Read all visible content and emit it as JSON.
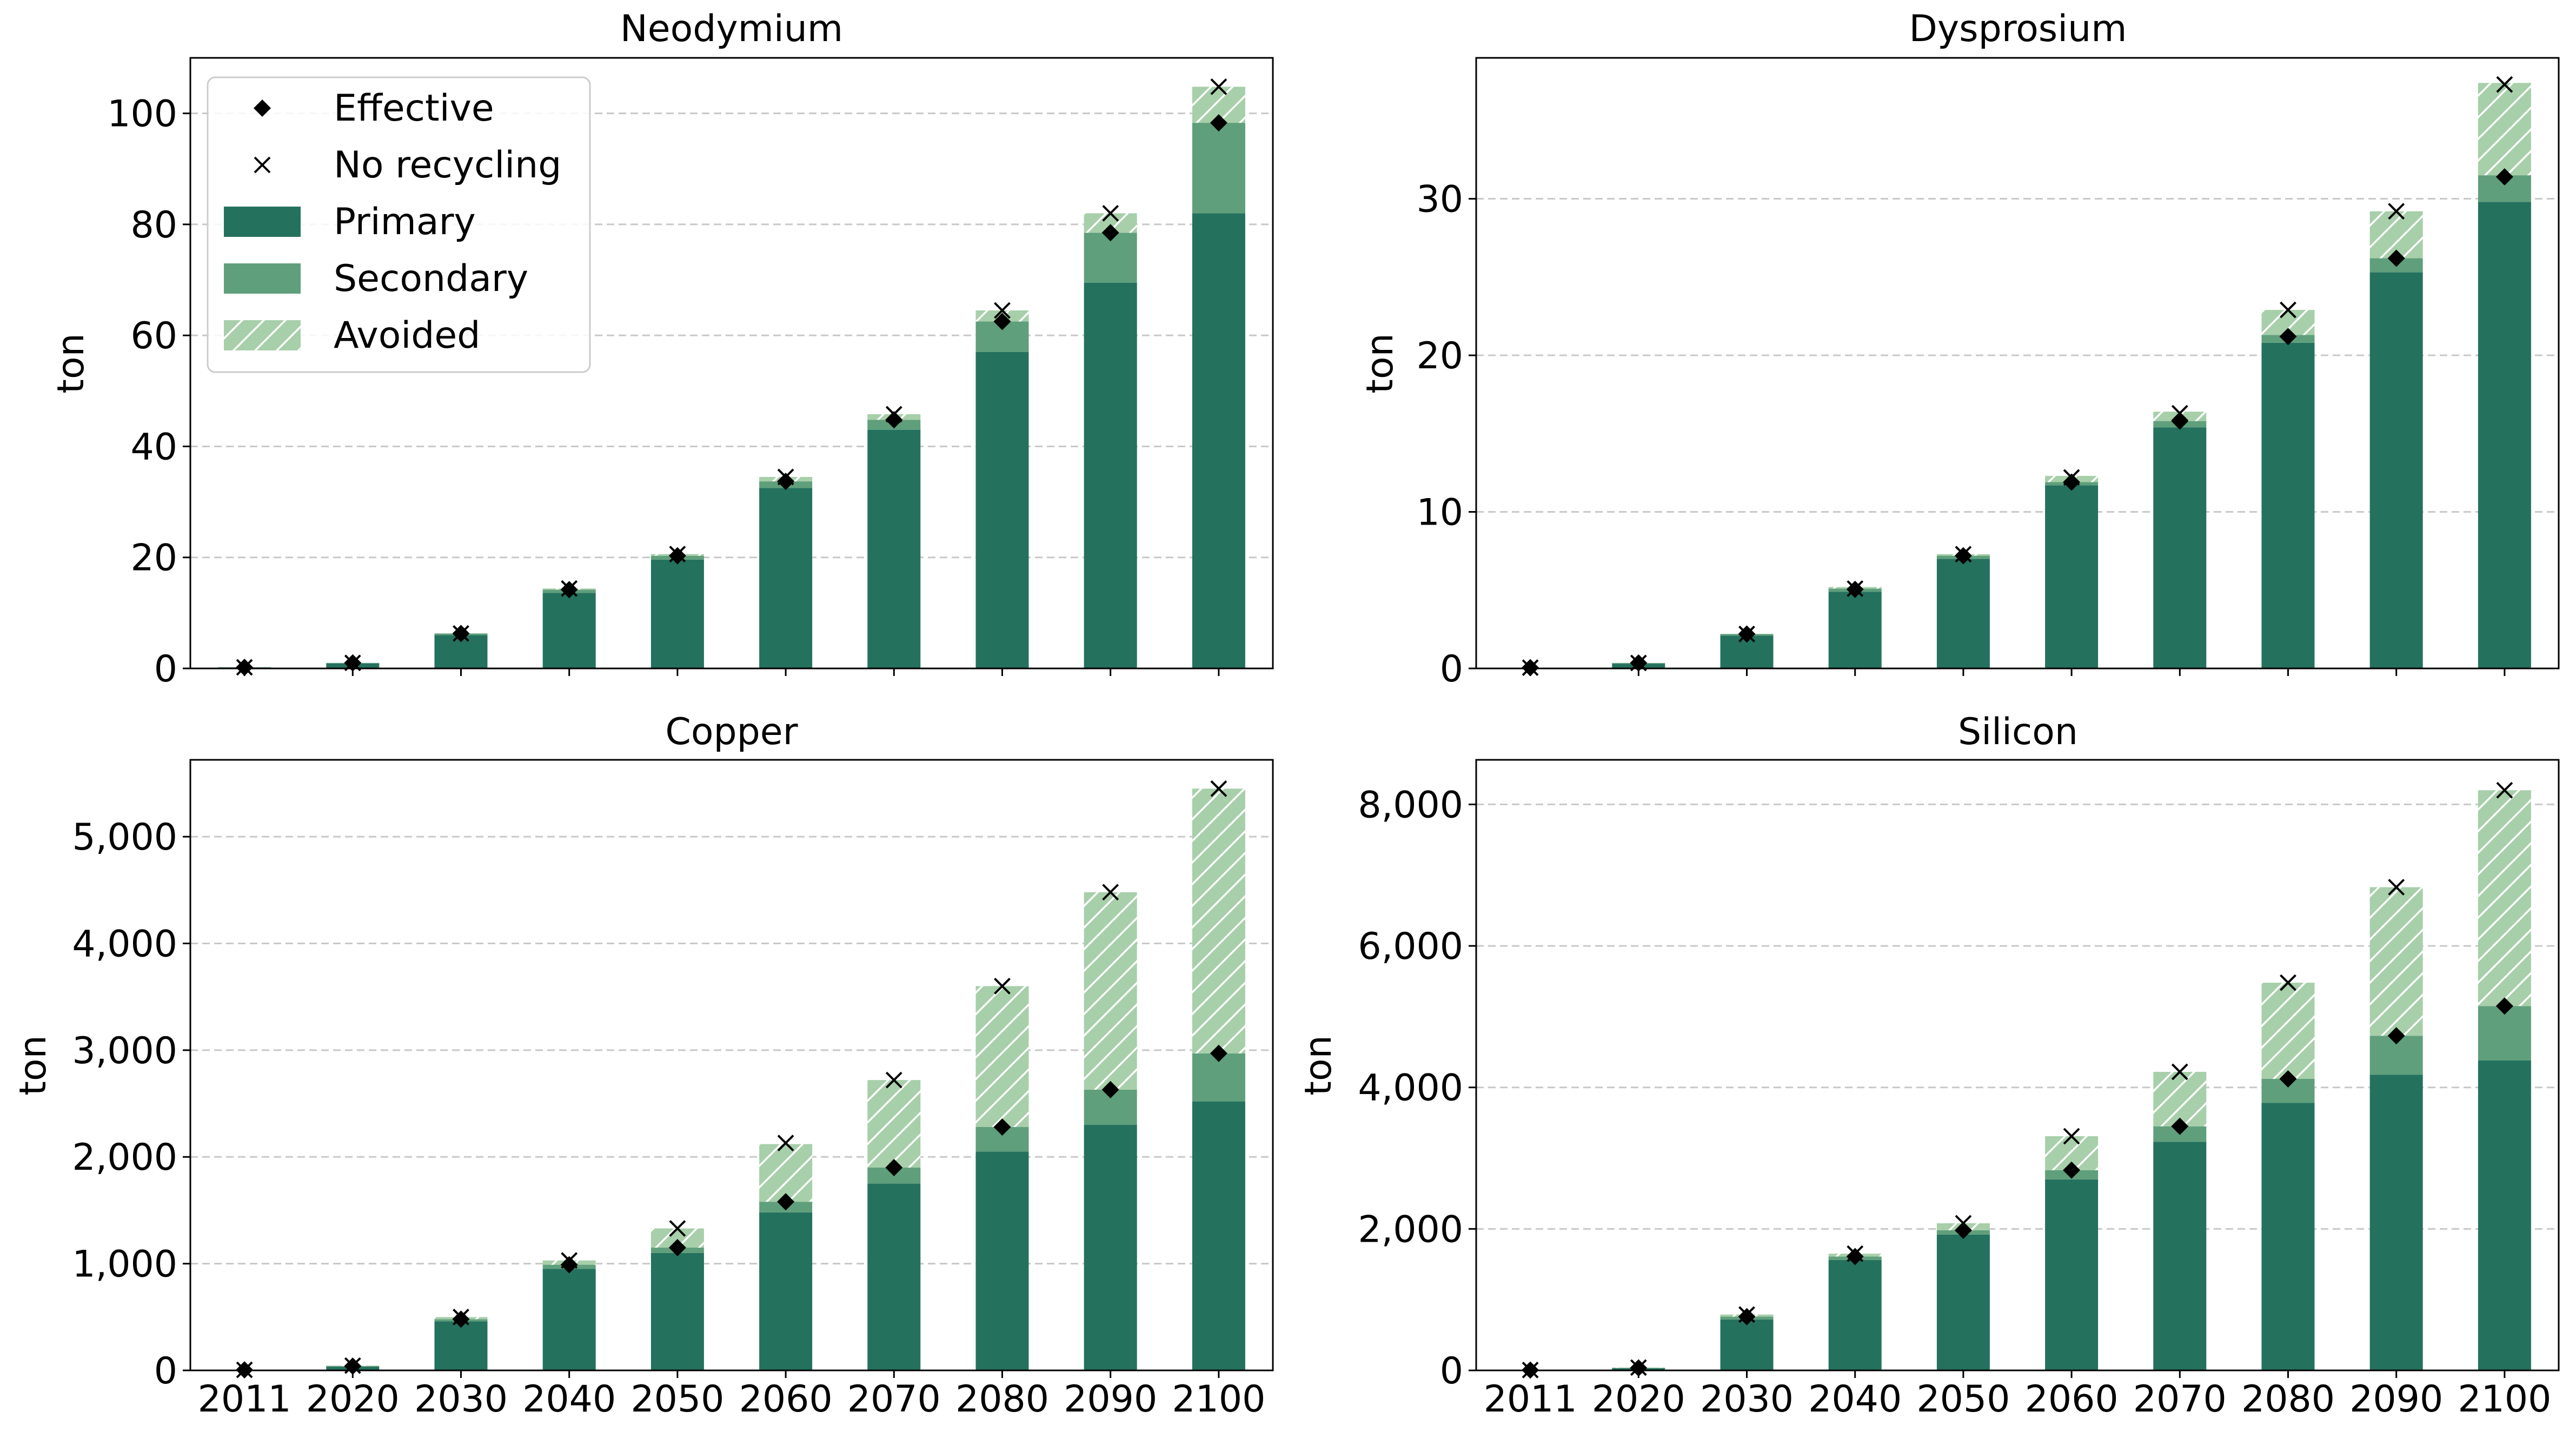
{
  "legend": {
    "effective": "Effective",
    "no_recycling": "No recycling",
    "primary": "Primary",
    "secondary": "Secondary",
    "avoided": "Avoided"
  },
  "colors": {
    "primary": "#24715e",
    "secondary": "#5f9f7c",
    "avoided": "#a7cfaa",
    "grid": "#c8c8c8"
  },
  "chart_data": [
    {
      "type": "bar",
      "stacked": true,
      "title": "Neodymium",
      "ylabel": "ton",
      "categories": [
        "2011",
        "2020",
        "2030",
        "2040",
        "2050",
        "2060",
        "2070",
        "2080",
        "2090",
        "2100"
      ],
      "ylim": [
        0,
        110
      ],
      "yticks": [
        0,
        20,
        40,
        60,
        80,
        100
      ],
      "ytick_labels": [
        "0",
        "20",
        "40",
        "60",
        "80",
        "100"
      ],
      "grid": "y-dashed",
      "legend_position": "top-left",
      "show_xticks": false,
      "series": [
        {
          "name": "Primary",
          "values": [
            0.2,
            0.9,
            6.0,
            13.6,
            19.6,
            32.5,
            43.0,
            57.0,
            69.5,
            82.0
          ]
        },
        {
          "name": "Secondary",
          "values": [
            0.0,
            0.1,
            0.3,
            0.6,
            0.7,
            1.2,
            1.8,
            5.5,
            9.0,
            16.3
          ]
        },
        {
          "name": "Avoided",
          "values": [
            0.0,
            0.0,
            0.0,
            0.2,
            0.3,
            0.8,
            1.0,
            2.0,
            3.5,
            6.5
          ]
        }
      ],
      "effective": [
        0.2,
        1.0,
        6.3,
        14.2,
        20.3,
        33.7,
        44.8,
        62.5,
        78.5,
        98.3
      ],
      "no_recycling": [
        0.2,
        1.0,
        6.3,
        14.4,
        20.6,
        34.5,
        45.8,
        64.5,
        82.0,
        104.8
      ]
    },
    {
      "type": "bar",
      "stacked": true,
      "title": "Dysprosium",
      "ylabel": "ton",
      "categories": [
        "2011",
        "2020",
        "2030",
        "2040",
        "2050",
        "2060",
        "2070",
        "2080",
        "2090",
        "2100"
      ],
      "ylim": [
        0,
        39
      ],
      "yticks": [
        0,
        10,
        20,
        30
      ],
      "ytick_labels": [
        "0",
        "10",
        "20",
        "30"
      ],
      "grid": "y-dashed",
      "show_xticks": false,
      "series": [
        {
          "name": "Primary",
          "values": [
            0.05,
            0.3,
            2.1,
            4.9,
            7.0,
            11.7,
            15.4,
            20.8,
            25.3,
            29.8
          ]
        },
        {
          "name": "Secondary",
          "values": [
            0.0,
            0.05,
            0.1,
            0.2,
            0.2,
            0.2,
            0.4,
            0.5,
            0.9,
            1.7
          ]
        },
        {
          "name": "Avoided",
          "values": [
            0.0,
            0.0,
            0.0,
            0.1,
            0.1,
            0.4,
            0.6,
            1.6,
            3.0,
            5.9
          ]
        }
      ],
      "effective": [
        0.05,
        0.35,
        2.2,
        5.05,
        7.2,
        11.9,
        15.8,
        21.2,
        26.2,
        31.4
      ],
      "no_recycling": [
        0.05,
        0.35,
        2.2,
        5.1,
        7.3,
        12.2,
        16.3,
        22.9,
        29.2,
        37.3
      ]
    },
    {
      "type": "bar",
      "stacked": true,
      "title": "Copper",
      "ylabel": "ton",
      "categories": [
        "2011",
        "2020",
        "2030",
        "2040",
        "2050",
        "2060",
        "2070",
        "2080",
        "2090",
        "2100"
      ],
      "ylim": [
        0,
        5720
      ],
      "yticks": [
        0,
        1000,
        2000,
        3000,
        4000,
        5000
      ],
      "ytick_labels": [
        "0",
        "1,000",
        "2,000",
        "3,000",
        "4,000",
        "5,000"
      ],
      "grid": "y-dashed",
      "show_xticks": true,
      "series": [
        {
          "name": "Primary",
          "values": [
            5,
            35,
            460,
            950,
            1100,
            1480,
            1750,
            2050,
            2300,
            2520
          ]
        },
        {
          "name": "Secondary",
          "values": [
            0,
            5,
            20,
            40,
            50,
            100,
            150,
            230,
            330,
            450
          ]
        },
        {
          "name": "Avoided",
          "values": [
            0,
            5,
            20,
            40,
            180,
            540,
            820,
            1320,
            1850,
            2480
          ]
        }
      ],
      "effective": [
        5,
        40,
        480,
        990,
        1150,
        1580,
        1900,
        2280,
        2630,
        2970
      ],
      "no_recycling": [
        5,
        45,
        500,
        1030,
        1330,
        2130,
        2720,
        3600,
        4480,
        5450
      ]
    },
    {
      "type": "bar",
      "stacked": true,
      "title": "Silicon",
      "ylabel": "ton",
      "categories": [
        "2011",
        "2020",
        "2030",
        "2040",
        "2050",
        "2060",
        "2070",
        "2080",
        "2090",
        "2100"
      ],
      "ylim": [
        0,
        8630
      ],
      "yticks": [
        0,
        2000,
        4000,
        6000,
        8000
      ],
      "ytick_labels": [
        "0",
        "2,000",
        "4,000",
        "6,000",
        "8,000"
      ],
      "grid": "y-dashed",
      "show_xticks": true,
      "series": [
        {
          "name": "Primary",
          "values": [
            5,
            30,
            720,
            1560,
            1920,
            2700,
            3230,
            3780,
            4180,
            4380
          ]
        },
        {
          "name": "Secondary",
          "values": [
            0,
            5,
            40,
            50,
            60,
            130,
            220,
            340,
            550,
            770
          ]
        },
        {
          "name": "Avoided",
          "values": [
            0,
            5,
            30,
            40,
            100,
            480,
            770,
            1360,
            2100,
            3050
          ]
        }
      ],
      "effective": [
        5,
        35,
        760,
        1610,
        1980,
        2830,
        3450,
        4120,
        4730,
        5150
      ],
      "no_recycling": [
        5,
        40,
        790,
        1650,
        2080,
        3310,
        4220,
        5480,
        6830,
        8200
      ]
    }
  ]
}
